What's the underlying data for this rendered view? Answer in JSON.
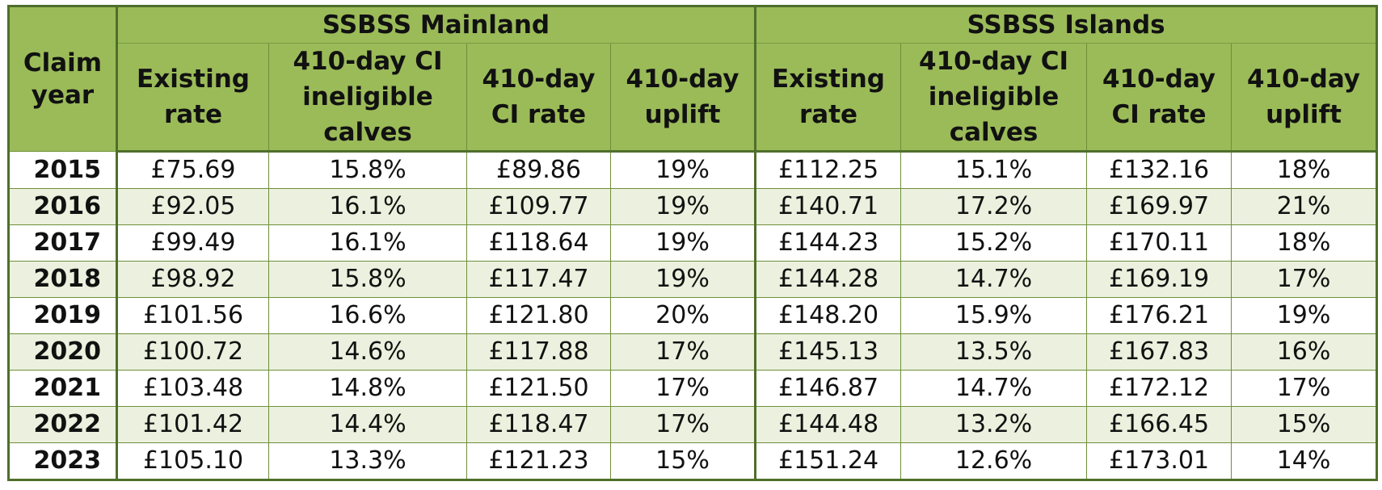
{
  "header": {
    "claim_year": "Claim year",
    "mainland_title": "SSBSS Mainland",
    "islands_title": "SSBSS Islands",
    "columns": {
      "existing_rate": "Existing rate",
      "ineligible": "410-day CI ineligible calves",
      "ci_rate": "410-day CI rate",
      "uplift": "410-day uplift"
    }
  },
  "rows": [
    {
      "year": "2015",
      "m_existing": "£75.69",
      "m_ineligible": "15.8%",
      "m_ci_rate": "£89.86",
      "m_uplift": "19%",
      "i_existing": "£112.25",
      "i_ineligible": "15.1%",
      "i_ci_rate": "£132.16",
      "i_uplift": "18%"
    },
    {
      "year": "2016",
      "m_existing": "£92.05",
      "m_ineligible": "16.1%",
      "m_ci_rate": "£109.77",
      "m_uplift": "19%",
      "i_existing": "£140.71",
      "i_ineligible": "17.2%",
      "i_ci_rate": "£169.97",
      "i_uplift": "21%"
    },
    {
      "year": "2017",
      "m_existing": "£99.49",
      "m_ineligible": "16.1%",
      "m_ci_rate": "£118.64",
      "m_uplift": "19%",
      "i_existing": "£144.23",
      "i_ineligible": "15.2%",
      "i_ci_rate": "£170.11",
      "i_uplift": "18%"
    },
    {
      "year": "2018",
      "m_existing": "£98.92",
      "m_ineligible": "15.8%",
      "m_ci_rate": "£117.47",
      "m_uplift": "19%",
      "i_existing": "£144.28",
      "i_ineligible": "14.7%",
      "i_ci_rate": "£169.19",
      "i_uplift": "17%"
    },
    {
      "year": "2019",
      "m_existing": "£101.56",
      "m_ineligible": "16.6%",
      "m_ci_rate": "£121.80",
      "m_uplift": "20%",
      "i_existing": "£148.20",
      "i_ineligible": "15.9%",
      "i_ci_rate": "£176.21",
      "i_uplift": "19%"
    },
    {
      "year": "2020",
      "m_existing": "£100.72",
      "m_ineligible": "14.6%",
      "m_ci_rate": "£117.88",
      "m_uplift": "17%",
      "i_existing": "£145.13",
      "i_ineligible": "13.5%",
      "i_ci_rate": "£167.83",
      "i_uplift": "16%"
    },
    {
      "year": "2021",
      "m_existing": "£103.48",
      "m_ineligible": "14.8%",
      "m_ci_rate": "£121.50",
      "m_uplift": "17%",
      "i_existing": "£146.87",
      "i_ineligible": "14.7%",
      "i_ci_rate": "£172.12",
      "i_uplift": "17%"
    },
    {
      "year": "2022",
      "m_existing": "£101.42",
      "m_ineligible": "14.4%",
      "m_ci_rate": "£118.47",
      "m_uplift": "17%",
      "i_existing": "£144.48",
      "i_ineligible": "13.2%",
      "i_ci_rate": "£166.45",
      "i_uplift": "15%"
    },
    {
      "year": "2023",
      "m_existing": "£105.10",
      "m_ineligible": "13.3%",
      "m_ci_rate": "£121.23",
      "m_uplift": "15%",
      "i_existing": "£151.24",
      "i_ineligible": "12.6%",
      "i_ci_rate": "£173.01",
      "i_uplift": "14%"
    }
  ],
  "colors": {
    "header_bg": "#9bbb59",
    "band_bg": "#ebf1de",
    "border": "#4f6f2a"
  }
}
